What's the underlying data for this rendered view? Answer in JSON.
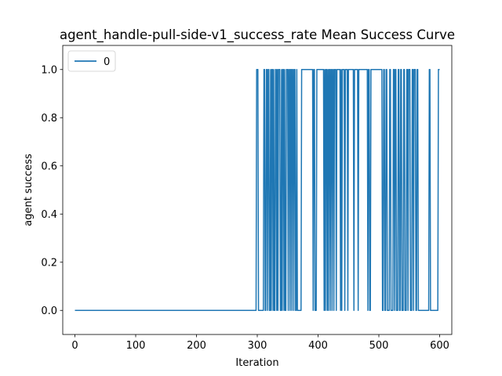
{
  "chart_data": {
    "type": "line",
    "title": "agent_handle-pull-side-v1_success_rate Mean Success Curve",
    "xlabel": "Iteration",
    "ylabel": "agent success",
    "xlim": [
      -20,
      620
    ],
    "ylim": [
      -0.1,
      1.1
    ],
    "x_ticks": [
      0,
      100,
      200,
      300,
      400,
      500,
      600
    ],
    "y_ticks": [
      0.0,
      0.2,
      0.4,
      0.6,
      0.8,
      1.0
    ],
    "x_tick_labels": [
      "0",
      "100",
      "200",
      "300",
      "400",
      "500",
      "600"
    ],
    "y_tick_labels": [
      "0.0",
      "0.2",
      "0.4",
      "0.6",
      "0.8",
      "1.0"
    ],
    "grid": false,
    "legend_position": "top-left",
    "line_color": "#1f77b4",
    "series": [
      {
        "name": "0",
        "x_start": 0,
        "x_end": 600,
        "default_value": 0,
        "success_iterations": [
          299,
          300,
          301,
          311,
          312,
          315,
          316,
          318,
          319,
          322,
          324,
          325,
          327,
          330,
          331,
          333,
          335,
          336,
          337,
          340,
          342,
          343,
          345,
          348,
          349,
          350,
          352,
          353,
          355,
          356,
          358,
          359,
          361,
          362,
          365,
          373,
          374,
          375,
          376,
          377,
          378,
          379,
          380,
          381,
          382,
          383,
          384,
          385,
          386,
          387,
          388,
          389,
          390,
          391,
          393,
          394,
          398,
          399,
          400,
          401,
          402,
          403,
          404,
          405,
          406,
          407,
          408,
          409,
          411,
          413,
          414,
          416,
          418,
          419,
          421,
          422,
          424,
          425,
          427,
          428,
          429,
          431,
          432,
          433,
          434,
          435,
          436,
          438,
          440,
          441,
          442,
          443,
          445,
          446,
          447,
          448,
          450,
          451,
          452,
          453,
          454,
          455,
          456,
          457,
          458,
          460,
          461,
          462,
          463,
          464,
          465,
          467,
          468,
          469,
          470,
          471,
          472,
          473,
          474,
          475,
          476,
          477,
          478,
          479,
          480,
          481,
          483,
          484,
          487,
          488,
          489,
          490,
          491,
          492,
          493,
          494,
          495,
          496,
          497,
          498,
          499,
          500,
          501,
          502,
          503,
          504,
          505,
          508,
          509,
          512,
          513,
          518,
          519,
          524,
          525,
          527,
          528,
          532,
          533,
          536,
          537,
          541,
          542,
          546,
          547,
          549,
          550,
          551,
          555,
          556,
          558,
          559,
          560,
          563,
          564,
          583,
          584,
          598,
          599,
          600
        ]
      }
    ]
  }
}
